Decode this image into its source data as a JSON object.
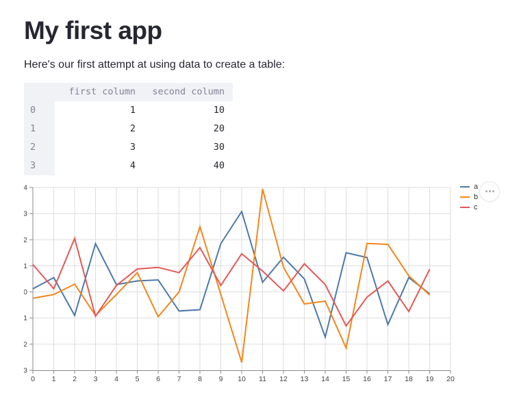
{
  "page": {
    "title": "My first app",
    "intro": "Here's our first attempt at using data to create a table:"
  },
  "table": {
    "corner_label": "",
    "columns": [
      "first column",
      "second column"
    ],
    "index": [
      "0",
      "1",
      "2",
      "3"
    ],
    "rows": [
      [
        "1",
        "10"
      ],
      [
        "2",
        "20"
      ],
      [
        "3",
        "30"
      ],
      [
        "4",
        "40"
      ]
    ],
    "header_bg": "#f0f2f6",
    "header_text_color": "#808495",
    "cell_text_color": "#262730"
  },
  "chart_data": {
    "type": "line",
    "title": "",
    "xlabel": "",
    "ylabel": "",
    "x": [
      0,
      1,
      2,
      3,
      4,
      5,
      6,
      7,
      8,
      9,
      10,
      11,
      12,
      13,
      14,
      15,
      16,
      17,
      18,
      19
    ],
    "series": [
      {
        "name": "a",
        "color": "#4c78a8",
        "values": [
          0.12,
          0.55,
          -0.9,
          1.85,
          0.28,
          0.42,
          0.46,
          -0.73,
          -0.68,
          1.85,
          3.08,
          0.37,
          1.33,
          0.5,
          -1.73,
          1.5,
          1.32,
          -1.25,
          0.55,
          -0.07
        ]
      },
      {
        "name": "b",
        "color": "#f58518",
        "values": [
          -0.24,
          -0.1,
          0.3,
          -0.9,
          -0.1,
          0.74,
          -0.95,
          0.0,
          2.5,
          -0.1,
          -2.7,
          3.94,
          0.95,
          -0.46,
          -0.35,
          -2.15,
          1.86,
          1.82,
          0.62,
          -0.12
        ]
      },
      {
        "name": "c",
        "color": "#e45756",
        "values": [
          1.05,
          0.12,
          2.05,
          -0.93,
          0.25,
          0.88,
          0.94,
          0.74,
          1.7,
          0.25,
          1.46,
          0.8,
          0.04,
          1.08,
          0.28,
          -1.3,
          -0.2,
          0.42,
          -0.75,
          0.87
        ]
      }
    ],
    "xlim": [
      0,
      20
    ],
    "ylim": [
      -3,
      4
    ],
    "xticks": [
      0,
      1,
      2,
      3,
      4,
      5,
      6,
      7,
      8,
      9,
      10,
      11,
      12,
      13,
      14,
      15,
      16,
      17,
      18,
      19,
      20
    ],
    "yticks": [
      -3,
      -2,
      -1,
      0,
      1,
      2,
      3,
      4
    ],
    "grid": true,
    "legend_position": "right",
    "grid_color": "#dddddd",
    "axis_color": "#888888",
    "tick_label_color": "#3f3f3f"
  },
  "chart_menu": {
    "icon_name": "ellipsis-icon",
    "dots": 3
  }
}
